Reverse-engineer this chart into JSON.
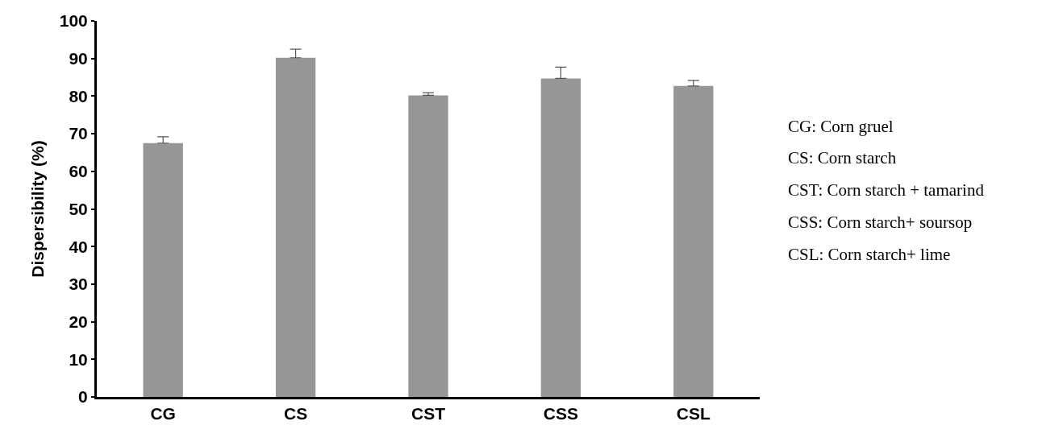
{
  "chart_data": {
    "type": "bar",
    "ylabel": "Dispersibility (%)",
    "categories": [
      "CG",
      "CS",
      "CST",
      "CSS",
      "CSL"
    ],
    "values": [
      67.5,
      90.2,
      80.2,
      84.7,
      82.7
    ],
    "errors": [
      [
        67.5,
        69.2
      ],
      [
        90.2,
        92.5
      ],
      [
        80.2,
        80.9
      ],
      [
        84.7,
        87.7
      ],
      [
        82.7,
        84.2
      ]
    ],
    "color": "#969696",
    "ylim": [
      0,
      100
    ],
    "yticks": [
      0,
      10,
      20,
      30,
      40,
      50,
      60,
      70,
      80,
      90,
      100
    ],
    "grid": false,
    "annotations": [
      "CG: Corn gruel",
      "CS: Corn starch",
      "CST: Corn starch + tamarind",
      "CSS: Corn starch+ soursop",
      "CSL: Corn starch+ lime"
    ]
  }
}
